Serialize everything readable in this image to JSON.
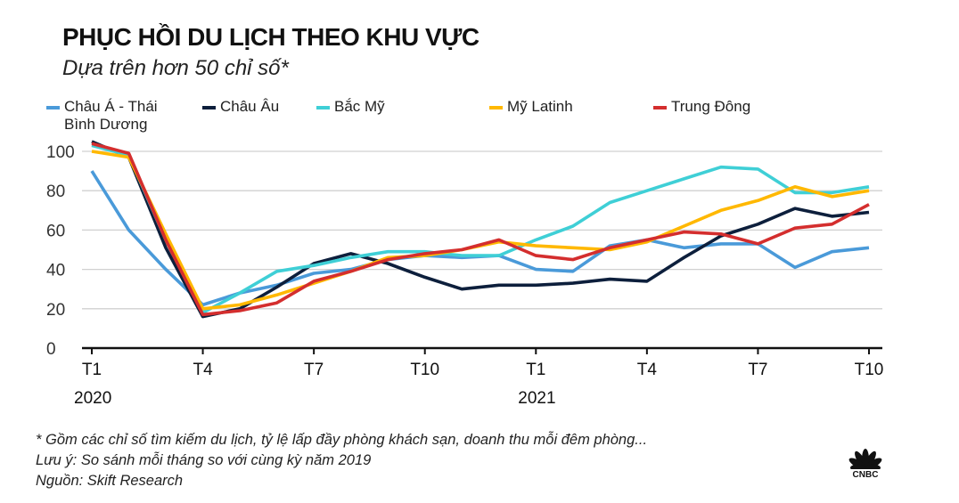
{
  "chart_data": {
    "type": "line",
    "title": "PHỤC HỒI DU LỊCH THEO KHU VỰC",
    "subtitle": "Dựa trên hơn 50 chỉ số*",
    "x_tick_labels": [
      "T1",
      "T4",
      "T7",
      "T10",
      "T1",
      "T4",
      "T7",
      "T10"
    ],
    "x_year_labels": [
      "2020",
      "2021"
    ],
    "x": [
      "2020-01",
      "2020-02",
      "2020-03",
      "2020-04",
      "2020-05",
      "2020-06",
      "2020-07",
      "2020-08",
      "2020-09",
      "2020-10",
      "2020-11",
      "2020-12",
      "2021-01",
      "2021-02",
      "2021-03",
      "2021-04",
      "2021-05",
      "2021-06",
      "2021-07",
      "2021-08",
      "2021-09",
      "2021-10"
    ],
    "ylim": [
      0,
      105
    ],
    "y_ticks": [
      0,
      20,
      40,
      60,
      80,
      100
    ],
    "grid": true,
    "legend_placement": "top",
    "series": [
      {
        "name": "Châu Á - Thái Bình Dương",
        "name_lines": [
          "Châu Á - Thái",
          "Bình Dương"
        ],
        "color": "#4a9ad9",
        "values": [
          90,
          60,
          40,
          22,
          28,
          32,
          38,
          40,
          45,
          47,
          46,
          47,
          40,
          39,
          52,
          55,
          51,
          53,
          53,
          41,
          49,
          51
        ]
      },
      {
        "name": "Châu Âu",
        "color": "#0d1f3c",
        "values": [
          105,
          97,
          51,
          16,
          20,
          31,
          43,
          48,
          43,
          36,
          30,
          32,
          32,
          33,
          35,
          34,
          46,
          57,
          63,
          71,
          67,
          69
        ]
      },
      {
        "name": "Bắc Mỹ",
        "color": "#3fcfd6",
        "values": [
          103,
          98,
          55,
          18,
          28,
          39,
          42,
          46,
          49,
          49,
          47,
          47,
          55,
          62,
          74,
          80,
          86,
          92,
          91,
          79,
          79,
          82
        ]
      },
      {
        "name": "Mỹ Latinh",
        "color": "#ffb800",
        "values": [
          100,
          97,
          58,
          20,
          22,
          27,
          33,
          39,
          46,
          47,
          50,
          54,
          52,
          51,
          50,
          54,
          62,
          70,
          75,
          82,
          77,
          80
        ]
      },
      {
        "name": "Trung Đông",
        "color": "#d42e2e",
        "values": [
          104,
          99,
          55,
          17,
          19,
          23,
          34,
          39,
          45,
          48,
          50,
          55,
          47,
          45,
          51,
          55,
          59,
          58,
          53,
          61,
          63,
          73
        ]
      }
    ]
  },
  "notes": [
    "* Gồm các chỉ số tìm kiếm du lịch, tỷ lệ lấp đầy phòng khách sạn, doanh thu mỗi đêm phòng...",
    "Lưu ý: So sánh mỗi tháng so với cùng kỳ năm 2019",
    "Nguồn: Skift Research"
  ],
  "logo": {
    "text": "CNBC",
    "icon": "cnbc-peacock-icon"
  }
}
